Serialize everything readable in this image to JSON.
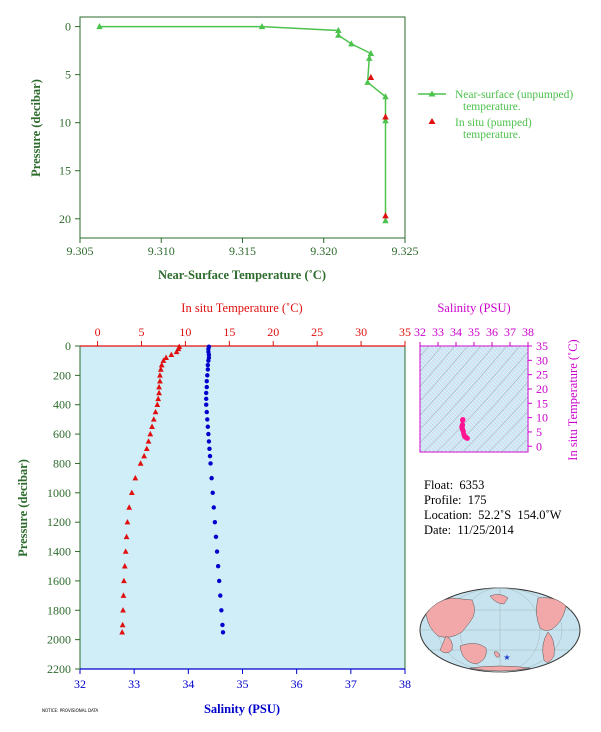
{
  "chart_data": [
    {
      "type": "line",
      "xlabel": "Near-Surface Temperature (˚C)",
      "ylabel": "Pressure (decibar)",
      "xlim": [
        9.305,
        9.325
      ],
      "ylim": [
        22,
        -1
      ],
      "x_ticks": [
        "9.305",
        "9.310",
        "9.315",
        "9.320",
        "9.325"
      ],
      "y_ticks": [
        "0",
        "5",
        "10",
        "15",
        "20"
      ],
      "legend_position": "right",
      "series": [
        {
          "name": "Near-surface (unpumped) temperature.",
          "color": "#4dc24d",
          "marker": "triangle",
          "temperature": [
            9.3062,
            9.3162,
            9.3209,
            9.3209,
            9.3217,
            9.3229,
            9.3228,
            9.3227,
            9.3238,
            9.3238,
            9.3238
          ],
          "pressure": [
            0.0,
            0.0,
            0.4,
            0.9,
            1.8,
            2.8,
            3.3,
            5.8,
            7.3,
            9.8,
            20.2
          ]
        },
        {
          "name": "In situ (pumped) temperature.",
          "color": "#e01010",
          "marker": "triangle",
          "temperature": [
            9.3229,
            9.3238,
            9.3238
          ],
          "pressure": [
            5.3,
            9.4,
            19.7
          ]
        }
      ],
      "legend": [
        "Near-surface (unpumped)",
        "temperature.",
        "In situ (pumped)",
        "temperature."
      ]
    },
    {
      "type": "scatter",
      "title_top": "In situ Temperature (˚C)",
      "xlabel": "Salinity (PSU)",
      "ylabel": "Pressure (decibar)",
      "temp_lim": [
        -2,
        35
      ],
      "sal_lim": [
        32,
        38
      ],
      "pressure_lim": [
        0,
        2200
      ],
      "temp_ticks": [
        "0",
        "5",
        "10",
        "15",
        "20",
        "25",
        "30",
        "35"
      ],
      "sal_ticks": [
        "32",
        "33",
        "34",
        "35",
        "36",
        "37",
        "38"
      ],
      "pressure_ticks": [
        "0",
        "200",
        "400",
        "600",
        "800",
        "1000",
        "1200",
        "1400",
        "1600",
        "1800",
        "2000",
        "2200"
      ],
      "temperature_series": {
        "color": "#e01010",
        "pressure": [
          5,
          20,
          40,
          60,
          80,
          100,
          130,
          160,
          200,
          240,
          280,
          320,
          360,
          400,
          450,
          500,
          550,
          600,
          650,
          700,
          750,
          800,
          900,
          1000,
          1100,
          1200,
          1300,
          1400,
          1500,
          1600,
          1700,
          1800,
          1900,
          1950
        ],
        "values": [
          9.3,
          9.2,
          9.0,
          8.4,
          7.8,
          7.5,
          7.3,
          7.2,
          7.1,
          7.1,
          7.0,
          7.0,
          6.9,
          6.8,
          6.6,
          6.4,
          6.2,
          6.0,
          5.8,
          5.6,
          5.3,
          4.9,
          4.3,
          3.9,
          3.6,
          3.4,
          3.3,
          3.2,
          3.1,
          3.0,
          2.95,
          2.9,
          2.85,
          2.8
        ]
      },
      "salinity_series": {
        "color": "#0000cc",
        "pressure": [
          5,
          20,
          40,
          60,
          80,
          100,
          130,
          160,
          200,
          240,
          280,
          320,
          360,
          400,
          450,
          500,
          550,
          600,
          650,
          700,
          750,
          800,
          900,
          1000,
          1100,
          1200,
          1300,
          1400,
          1500,
          1600,
          1700,
          1800,
          1900,
          1950
        ],
        "values": [
          34.38,
          34.37,
          34.37,
          34.38,
          34.38,
          34.37,
          34.36,
          34.36,
          34.35,
          34.34,
          34.34,
          34.33,
          34.33,
          34.33,
          34.34,
          34.35,
          34.36,
          34.37,
          34.38,
          34.39,
          34.4,
          34.41,
          34.43,
          34.45,
          34.47,
          34.49,
          34.51,
          34.53,
          34.55,
          34.57,
          34.59,
          34.61,
          34.63,
          34.64
        ]
      }
    },
    {
      "type": "scatter",
      "title_top": "Salinity (PSU)",
      "ylabel": "In situ Temperature (˚C)",
      "sal_lim": [
        32,
        38
      ],
      "temp_lim": [
        -2,
        35
      ],
      "sal_ticks": [
        "32",
        "33",
        "34",
        "35",
        "36",
        "37",
        "38"
      ],
      "temp_ticks": [
        "0",
        "5",
        "10",
        "15",
        "20",
        "25",
        "30",
        "35"
      ],
      "color": "#ff1493",
      "points_salinity": [
        34.38,
        34.37,
        34.36,
        34.35,
        34.34,
        34.33,
        34.33,
        34.35,
        34.37,
        34.4,
        34.43,
        34.47,
        34.51,
        34.55,
        34.59,
        34.63
      ],
      "points_temperature": [
        9.3,
        9.0,
        7.5,
        7.2,
        7.0,
        6.8,
        6.6,
        6.2,
        5.8,
        5.3,
        4.3,
        3.6,
        3.3,
        3.1,
        2.95,
        2.8
      ]
    }
  ],
  "float_info": {
    "float": "Float:  6353",
    "profile": "Profile:  175",
    "location": "Location:  52.2˚S  154.0˚W",
    "date": "Date:  11/25/2014"
  },
  "footnote": "NOTICE: PROVISIONAL DATA",
  "colors": {
    "plot_background": "#cfeef7",
    "axis_green": "#2e6b2e",
    "temp_red": "#e01010",
    "sal_blue": "#0000cc",
    "ts_magenta": "#cc00cc",
    "map_ocean": "#c7e3ef",
    "map_land": "#f2a8a8"
  },
  "map": {
    "marker_symbol": "★"
  }
}
